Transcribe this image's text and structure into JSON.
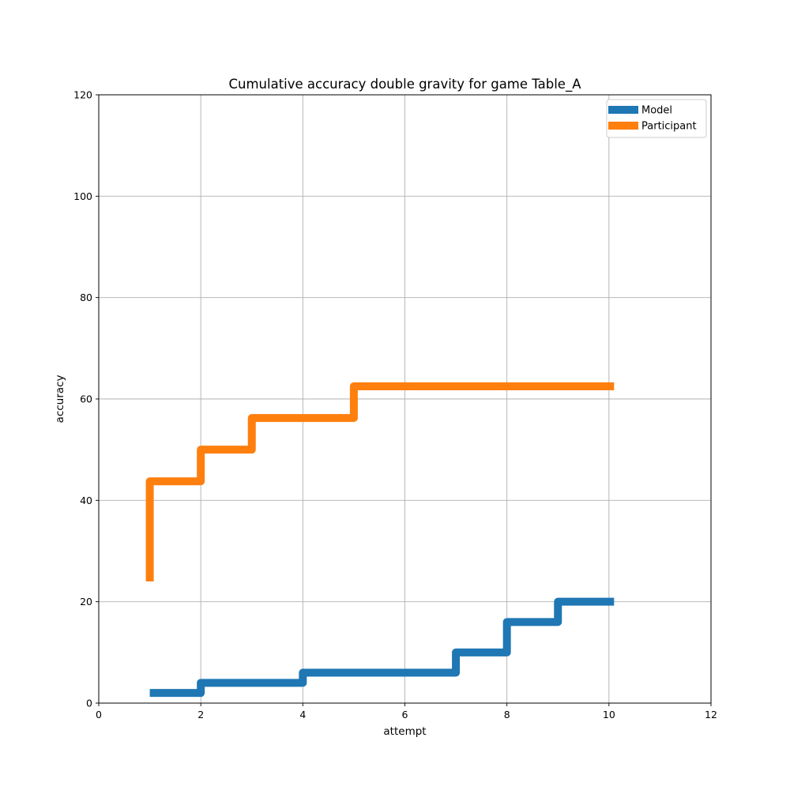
{
  "chart_data": {
    "type": "line",
    "title": "Cumulative accuracy double gravity for game Table_A",
    "xlabel": "attempt",
    "ylabel": "accuracy",
    "xlim": [
      0,
      12
    ],
    "ylim": [
      0,
      120
    ],
    "xticks": [
      0,
      2,
      4,
      6,
      8,
      10,
      12
    ],
    "yticks": [
      0,
      20,
      40,
      60,
      80,
      100,
      120
    ],
    "xtick_labels": [
      "0",
      "2",
      "4",
      "6",
      "8",
      "10",
      "12"
    ],
    "ytick_labels": [
      "0",
      "20",
      "40",
      "60",
      "80",
      "100",
      "120"
    ],
    "grid": true,
    "legend_position": "top-right",
    "step": "post",
    "series": [
      {
        "name": "Model",
        "color": "#1f77b4",
        "x": [
          1,
          2,
          3,
          4,
          5,
          6,
          7,
          8,
          9,
          10,
          10.1
        ],
        "y": [
          2,
          4,
          4,
          6,
          6,
          6,
          10,
          16,
          20,
          20,
          20
        ]
      },
      {
        "name": "Participant",
        "color": "#ff7f0e",
        "x": [
          1,
          1,
          2,
          3,
          4,
          5,
          6,
          7,
          8,
          9,
          10,
          10.1
        ],
        "y": [
          24,
          43.75,
          50,
          56.25,
          56.25,
          62.5,
          62.5,
          62.5,
          62.5,
          62.5,
          62.5,
          62.5
        ]
      }
    ]
  }
}
